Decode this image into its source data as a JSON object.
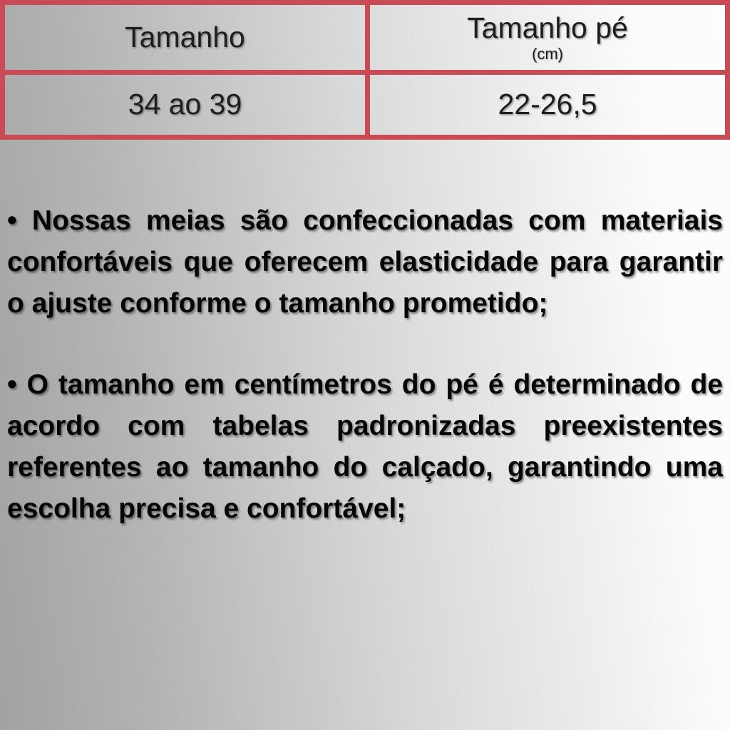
{
  "table": {
    "columns": [
      {
        "header": "Tamanho",
        "sub": ""
      },
      {
        "header": "Tamanho pé",
        "sub": "(cm)"
      }
    ],
    "rows": [
      [
        "34 ao 39",
        "22-26,5"
      ]
    ]
  },
  "bullets": [
    "• Nossas meias são confeccionadas com materiais confortáveis que oferecem elasticidade para garantir o ajuste conforme o tamanho prometido;",
    "• O tamanho em centímetros do pé é determinado de acordo com tabelas padronizadas preexistentes referentes ao tamanho do calçado, garantindo uma escolha precisa e confortável;"
  ],
  "colors": {
    "table_border_red": "#c94b55",
    "table_text": "#1e1e1e",
    "body_text": "#060606",
    "background_left_gray": "#a2a2a2",
    "background_right_white": "#fdfdfd"
  }
}
